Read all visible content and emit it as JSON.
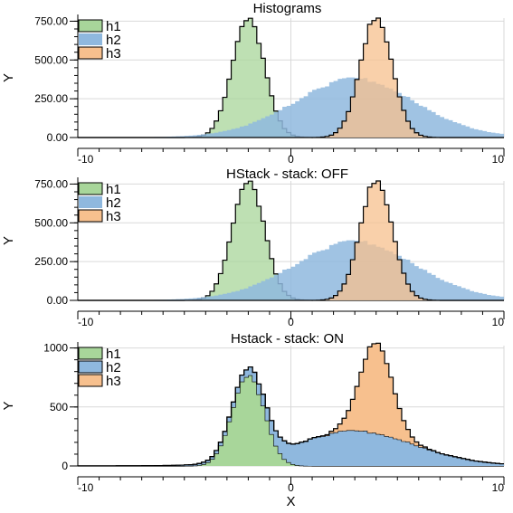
{
  "chart_data": [
    {
      "type": "area",
      "title": "Histograms",
      "xlabel": "",
      "ylabel": "Y",
      "stacked": false,
      "xlim": [
        -10,
        10
      ],
      "ylim": [
        0,
        770
      ],
      "x_ticks": [
        "-10",
        "0",
        "10"
      ],
      "y_ticks": [
        {
          "value": 0,
          "label": "0.00"
        },
        {
          "value": 250,
          "label": "250.00"
        },
        {
          "value": 500,
          "label": "500.00"
        },
        {
          "value": 750,
          "label": "750.00"
        }
      ],
      "grid": true,
      "legend": "top-left",
      "series": [
        {
          "name": "h1",
          "color": "#a8d69a",
          "stroke": "#000000",
          "shape": {
            "type": "gaussian",
            "mean": -2,
            "sd": 0.75,
            "peak": 770
          }
        },
        {
          "name": "h2",
          "color": "#8fb8de",
          "stroke": "none",
          "shape": {
            "type": "broad",
            "mean": 3,
            "sd": 3,
            "peak": 320
          }
        },
        {
          "name": "h3",
          "color": "#f7c08e",
          "stroke": "#000000",
          "shape": {
            "type": "gaussian",
            "mean": 4,
            "sd": 0.75,
            "peak": 770
          }
        }
      ]
    },
    {
      "type": "area",
      "title": "HStack - stack: OFF",
      "xlabel": "",
      "ylabel": "Y",
      "stacked": false,
      "xlim": [
        -10,
        10
      ],
      "ylim": [
        0,
        770
      ],
      "x_ticks": [
        "-10",
        "0",
        "10"
      ],
      "y_ticks": [
        {
          "value": 0,
          "label": "0.00"
        },
        {
          "value": 250,
          "label": "250.00"
        },
        {
          "value": 500,
          "label": "500.00"
        },
        {
          "value": 750,
          "label": "750.00"
        }
      ],
      "grid": true,
      "legend": "top-left",
      "series": [
        {
          "name": "h1",
          "color": "#a8d69a",
          "stroke": "#000000",
          "shape": {
            "type": "gaussian",
            "mean": -2,
            "sd": 0.75,
            "peak": 770
          }
        },
        {
          "name": "h2",
          "color": "#8fb8de",
          "stroke": "none",
          "shape": {
            "type": "broad",
            "mean": 3,
            "sd": 3,
            "peak": 320
          }
        },
        {
          "name": "h3",
          "color": "#f7c08e",
          "stroke": "#000000",
          "shape": {
            "type": "gaussian",
            "mean": 4,
            "sd": 0.75,
            "peak": 770
          }
        }
      ]
    },
    {
      "type": "area",
      "title": "Hstack - stack: ON",
      "xlabel": "X",
      "ylabel": "Y",
      "stacked": true,
      "xlim": [
        -10,
        10
      ],
      "ylim": [
        0,
        1020
      ],
      "x_ticks": [
        "-10",
        "0",
        "10"
      ],
      "y_ticks": [
        {
          "value": 0,
          "label": "0"
        },
        {
          "value": 500,
          "label": "500"
        },
        {
          "value": 1000,
          "label": "1000"
        }
      ],
      "grid": true,
      "legend": "top-left",
      "series": [
        {
          "name": "h1",
          "color": "#a8d69a",
          "stroke": "#000000",
          "shape": {
            "type": "gaussian",
            "mean": -2,
            "sd": 0.75,
            "peak": 770
          }
        },
        {
          "name": "h2",
          "color": "#8fb8de",
          "stroke": "#000000",
          "shape": {
            "type": "broad",
            "mean": 3,
            "sd": 3,
            "peak": 250
          }
        },
        {
          "name": "h3",
          "color": "#f7c08e",
          "stroke": "#000000",
          "shape": {
            "type": "gaussian",
            "mean": 4,
            "sd": 0.75,
            "peak": 770
          }
        }
      ]
    }
  ]
}
